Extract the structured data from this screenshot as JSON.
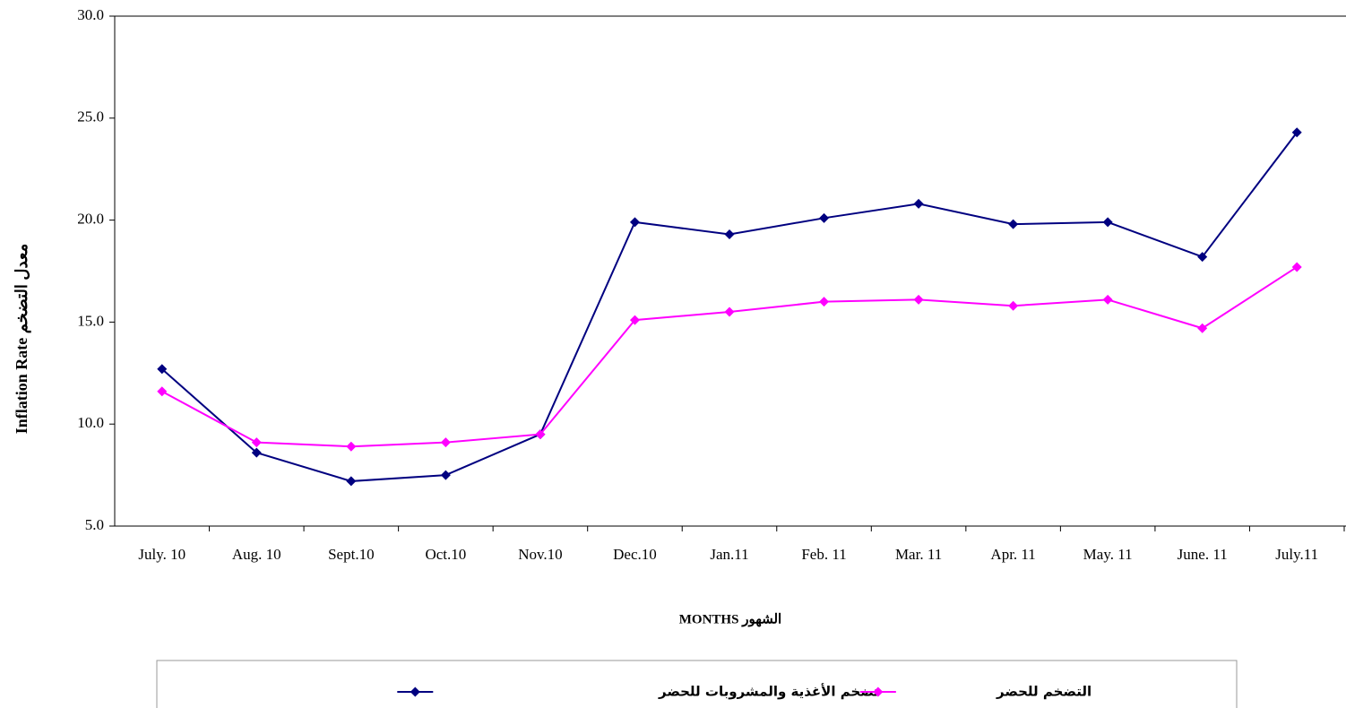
{
  "chart_data": {
    "type": "line",
    "x_label": "MONTHS الشهور",
    "y_label": "Inflation Rate معدل التضخم",
    "categories": [
      "July. 10",
      "Aug. 10",
      "Sept.10",
      "Oct.10",
      "Nov.10",
      "Dec.10",
      "Jan.11",
      "Feb. 11",
      "Mar. 11",
      "Apr. 11",
      "May. 11",
      "June. 11",
      "July.11"
    ],
    "series": [
      {
        "name": "تضخم الأغذية والمشروبات للحضر",
        "color": "#000080",
        "values": [
          12.7,
          8.6,
          7.2,
          7.5,
          9.5,
          19.9,
          19.3,
          20.1,
          20.8,
          19.8,
          19.9,
          18.2,
          24.3
        ]
      },
      {
        "name": "التضخم للحضر",
        "color": "#ff00ff",
        "values": [
          11.6,
          9.1,
          8.9,
          9.1,
          9.5,
          15.1,
          15.5,
          16.0,
          16.1,
          15.8,
          16.1,
          14.7,
          17.7
        ]
      }
    ],
    "ylim": [
      5,
      30
    ],
    "yticks": [
      {
        "value": 5,
        "label": "5.0"
      },
      {
        "value": 10,
        "label": "10.0"
      },
      {
        "value": 15,
        "label": "15.0"
      },
      {
        "value": 20,
        "label": "20.0"
      },
      {
        "value": 25,
        "label": "25.0"
      },
      {
        "value": 30,
        "label": "30.0"
      }
    ],
    "legend": "bottom"
  }
}
